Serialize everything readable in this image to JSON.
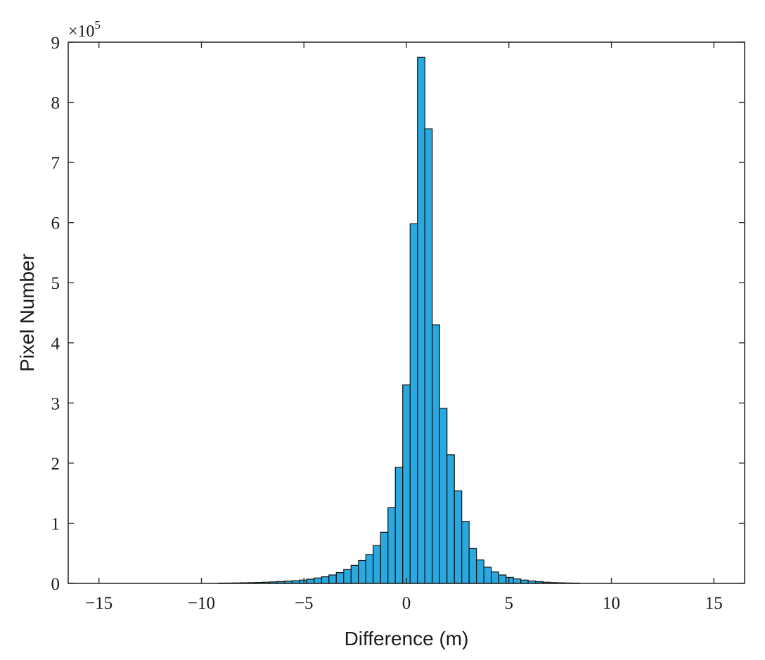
{
  "chart_data": {
    "type": "bar",
    "xlabel": "Difference (m)",
    "ylabel": "Pixel Number",
    "y_multiplier": {
      "base": "×10",
      "exponent": "5"
    },
    "xlim": [
      -16.5,
      16.5
    ],
    "ylim": [
      0,
      9
    ],
    "x_ticks": [
      -15,
      -10,
      -5,
      0,
      5,
      10,
      15
    ],
    "x_tick_labels": [
      "−15",
      "−10",
      "−5",
      "0",
      "5",
      "10",
      "15"
    ],
    "y_ticks": [
      0,
      1,
      2,
      3,
      4,
      5,
      6,
      7,
      8,
      9
    ],
    "y_tick_labels": [
      "0",
      "1",
      "2",
      "3",
      "4",
      "5",
      "6",
      "7",
      "8",
      "9"
    ],
    "bin_width": 0.36,
    "bar_color": "#29a9df",
    "bins": [
      {
        "x": -8.64,
        "y": 0.005
      },
      {
        "x": -8.28,
        "y": 0.006
      },
      {
        "x": -7.92,
        "y": 0.008
      },
      {
        "x": -7.56,
        "y": 0.01
      },
      {
        "x": -7.2,
        "y": 0.013
      },
      {
        "x": -6.84,
        "y": 0.016
      },
      {
        "x": -6.48,
        "y": 0.02
      },
      {
        "x": -6.12,
        "y": 0.025
      },
      {
        "x": -5.76,
        "y": 0.03
      },
      {
        "x": -5.4,
        "y": 0.037
      },
      {
        "x": -5.04,
        "y": 0.045
      },
      {
        "x": -4.68,
        "y": 0.055
      },
      {
        "x": -4.32,
        "y": 0.07
      },
      {
        "x": -3.96,
        "y": 0.09
      },
      {
        "x": -3.6,
        "y": 0.11
      },
      {
        "x": -3.24,
        "y": 0.14
      },
      {
        "x": -2.88,
        "y": 0.18
      },
      {
        "x": -2.52,
        "y": 0.23
      },
      {
        "x": -2.16,
        "y": 0.3
      },
      {
        "x": -1.8,
        "y": 0.38
      },
      {
        "x": -1.44,
        "y": 0.48
      },
      {
        "x": -1.08,
        "y": 0.63
      },
      {
        "x": -0.72,
        "y": 0.85
      },
      {
        "x": -0.36,
        "y": 1.26
      },
      {
        "x": 0.0,
        "y": 1.93
      },
      {
        "x": 0.36,
        "y": 3.3
      },
      {
        "x": 0.72,
        "y": 5.98
      },
      {
        "x": 1.08,
        "y": 8.75
      },
      {
        "x": 1.44,
        "y": 7.56
      },
      {
        "x": 1.8,
        "y": 4.3
      },
      {
        "x": 2.16,
        "y": 2.91
      },
      {
        "x": 2.52,
        "y": 2.14
      },
      {
        "x": 2.88,
        "y": 1.54
      },
      {
        "x": 3.24,
        "y": 1.03
      },
      {
        "x": 3.6,
        "y": 0.58
      },
      {
        "x": 3.96,
        "y": 0.39
      },
      {
        "x": 4.32,
        "y": 0.27
      },
      {
        "x": 4.68,
        "y": 0.19
      },
      {
        "x": 5.04,
        "y": 0.14
      },
      {
        "x": 5.4,
        "y": 0.1
      },
      {
        "x": 5.76,
        "y": 0.075
      },
      {
        "x": 6.12,
        "y": 0.055
      },
      {
        "x": 6.48,
        "y": 0.04
      },
      {
        "x": 6.84,
        "y": 0.028
      },
      {
        "x": 7.2,
        "y": 0.02
      },
      {
        "x": 7.56,
        "y": 0.014
      },
      {
        "x": 7.92,
        "y": 0.01
      },
      {
        "x": 8.28,
        "y": 0.007
      },
      {
        "x": 8.64,
        "y": 0.005
      }
    ]
  }
}
